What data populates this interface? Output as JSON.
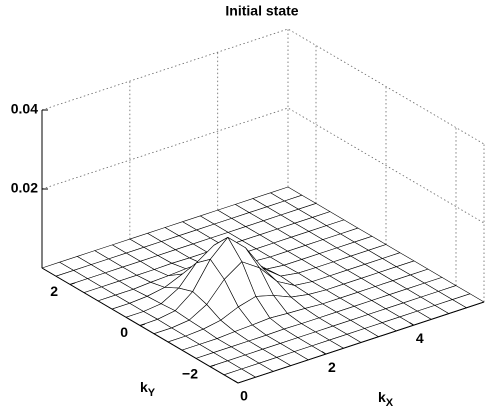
{
  "chart_data": {
    "type": "surface",
    "title": "Initial state",
    "xlabel": "k",
    "xlabel_sub": "X",
    "ylabel": "k",
    "ylabel_sub": "Y",
    "x": [
      0,
      0.4,
      0.8,
      1.2,
      1.6,
      2.0,
      2.4,
      2.8,
      3.2,
      3.6,
      4.0,
      4.4,
      4.8,
      5.2,
      5.6
    ],
    "y": [
      -2.8,
      -2.4,
      -2.0,
      -1.6,
      -1.2,
      -0.8,
      -0.4,
      0,
      0.4,
      0.8,
      1.2,
      1.6,
      2.0,
      2.4,
      2.8
    ],
    "z": [
      [
        0,
        0,
        0,
        0,
        0,
        0,
        0,
        0,
        0,
        0,
        0,
        0,
        0,
        0,
        0
      ],
      [
        0,
        0,
        0,
        0,
        0,
        0,
        0,
        0,
        0,
        0,
        0,
        0,
        0,
        0,
        0
      ],
      [
        0,
        0,
        0,
        0,
        0,
        0,
        0,
        0,
        0,
        0,
        0,
        0,
        0,
        0,
        0
      ],
      [
        0,
        0,
        0,
        0,
        0,
        0.0001,
        0,
        0,
        0,
        0,
        0,
        0,
        0,
        0,
        0
      ],
      [
        0,
        0,
        0,
        0.0003,
        0.0005,
        0.0008,
        0.0005,
        0.0003,
        0,
        0,
        0,
        0,
        0,
        0,
        0
      ],
      [
        0,
        0,
        0.0003,
        0.0011,
        0.003,
        0.0042,
        0.003,
        0.0011,
        0.0003,
        0,
        0,
        0,
        0,
        0,
        0
      ],
      [
        0,
        0,
        0.0005,
        0.003,
        0.0079,
        0.0109,
        0.0079,
        0.003,
        0.0005,
        0,
        0,
        0,
        0,
        0,
        0
      ],
      [
        0,
        0.0001,
        0.0008,
        0.0042,
        0.0109,
        0.015,
        0.0109,
        0.0042,
        0.0008,
        0.0001,
        0,
        0,
        0,
        0,
        0
      ],
      [
        0,
        0,
        0.0005,
        0.003,
        0.0079,
        0.0109,
        0.0079,
        0.003,
        0.0005,
        0,
        0,
        0,
        0,
        0,
        0
      ],
      [
        0,
        0,
        0.0003,
        0.0011,
        0.003,
        0.0042,
        0.003,
        0.0011,
        0.0003,
        0,
        0,
        0,
        0,
        0,
        0
      ],
      [
        0,
        0,
        0,
        0.0003,
        0.0005,
        0.0008,
        0.0005,
        0.0003,
        0,
        0,
        0,
        0,
        0,
        0,
        0
      ],
      [
        0,
        0,
        0,
        0,
        0,
        0.0001,
        0,
        0,
        0,
        0,
        0,
        0,
        0,
        0,
        0
      ],
      [
        0,
        0,
        0,
        0,
        0,
        0,
        0,
        0,
        0,
        0,
        0,
        0,
        0,
        0,
        0
      ],
      [
        0,
        0,
        0,
        0,
        0,
        0,
        0,
        0,
        0,
        0,
        0,
        0,
        0,
        0,
        0
      ],
      [
        0,
        0,
        0,
        0,
        0,
        0,
        0,
        0,
        0,
        0,
        0,
        0,
        0,
        0,
        0
      ]
    ],
    "color": "#000000",
    "fill": "#ffffff",
    "xlim": [
      0,
      5.6
    ],
    "ylim": [
      -2.8,
      2.8
    ],
    "zlim": [
      0,
      0.04
    ],
    "xticks": [
      0,
      2,
      4
    ],
    "yticks": [
      {
        "value": -2,
        "label": "−2"
      },
      0,
      2
    ],
    "zticks": [
      0.02,
      0.04
    ],
    "grid": true
  }
}
